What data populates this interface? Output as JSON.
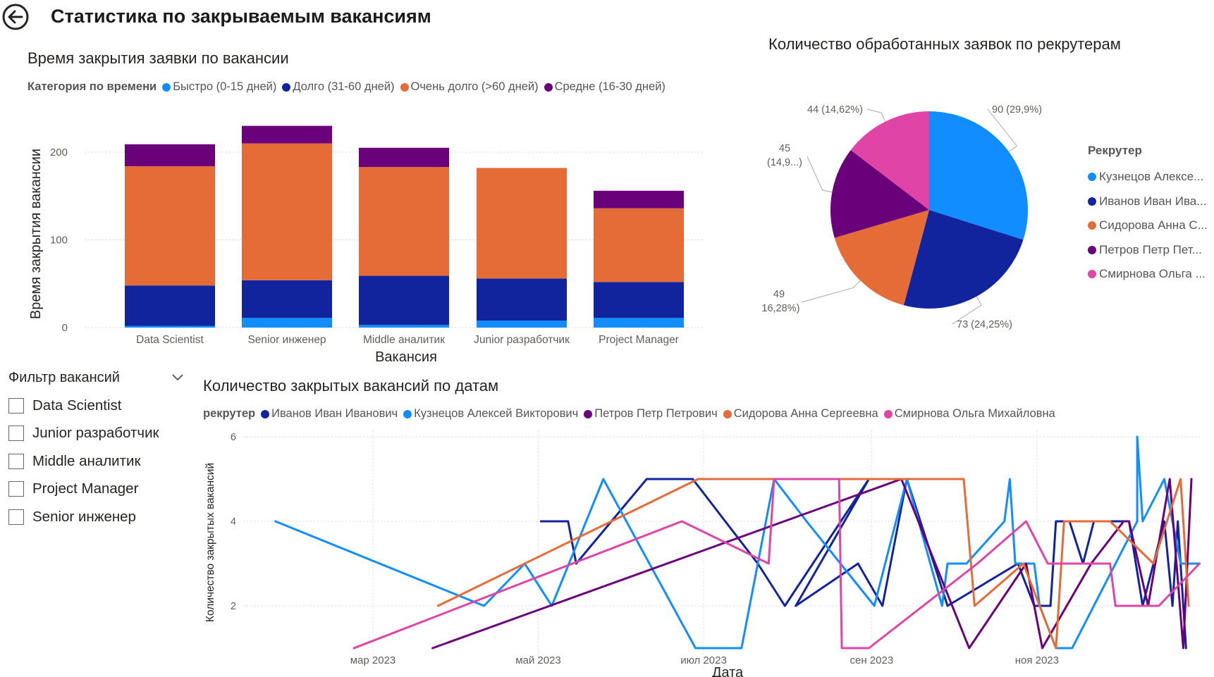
{
  "page": {
    "title": "Статистика по закрываемым вакансиям",
    "back_icon": "back-arrow-icon"
  },
  "bar_chart": {
    "title": "Время закрытия заявки по вакансии",
    "legend_title": "Категория по времени"
  },
  "pie_chart": {
    "title": "Количество обработанных заявок по рекрутерам",
    "legend_title": "Рекрутер",
    "legend_items": [
      {
        "label": "Кузнецов Алексе...",
        "color": "#118DFF"
      },
      {
        "label": "Иванов Иван Ива...",
        "color": "#12239E"
      },
      {
        "label": "Сидорова Анна С...",
        "color": "#E66C37"
      },
      {
        "label": "Петров Петр Пет...",
        "color": "#6B007B"
      },
      {
        "label": "Смирнова Ольга ...",
        "color": "#E044A7"
      }
    ]
  },
  "line_chart": {
    "title": "Количество закрытых вакансий по датам",
    "legend_title": "рекрутер"
  },
  "slicer": {
    "title": "Фильтр вакансий",
    "chevron_icon": "chevron-down-icon",
    "items": [
      "Data Scientist",
      "Junior разработчик",
      "Middle аналитик",
      "Project Manager",
      "Senior инженер"
    ]
  },
  "chart_data": [
    {
      "type": "bar",
      "stacked": true,
      "title": "Время закрытия заявки по вакансии",
      "xlabel": "Вакансия",
      "ylabel": "Время закрытия вакансии",
      "categories": [
        "Data Scientist",
        "Senior инженер",
        "Middle аналитик",
        "Junior разработчик",
        "Project Manager"
      ],
      "ylim": [
        0,
        230
      ],
      "yticks": [
        0,
        100,
        200
      ],
      "legend_position": "top",
      "series": [
        {
          "name": "Быстро (0-15 дней)",
          "color": "#118DFF",
          "values": [
            2,
            11,
            3,
            8,
            11
          ]
        },
        {
          "name": "Долго (31-60 дней)",
          "color": "#12239E",
          "values": [
            46,
            43,
            56,
            48,
            41
          ]
        },
        {
          "name": "Очень долго (>60 дней)",
          "color": "#E66C37",
          "values": [
            136,
            156,
            124,
            126,
            84
          ]
        },
        {
          "name": "Средне (16-30 дней)",
          "color": "#6B007B",
          "values": [
            25,
            20,
            22,
            0,
            20
          ]
        }
      ]
    },
    {
      "type": "pie",
      "title": "Количество обработанных заявок по рекрутерам",
      "legend_position": "right",
      "slices": [
        {
          "name": "Кузнецов Алексе...",
          "value": 90,
          "label": "90 (29,9%)",
          "color": "#118DFF"
        },
        {
          "name": "Иванов Иван Ива...",
          "value": 73,
          "label": "73 (24,25%)",
          "color": "#12239E"
        },
        {
          "name": "Сидорова Анна С...",
          "value": 49,
          "label": "49 (16,28%)",
          "color": "#E66C37"
        },
        {
          "name": "Петров Петр Пет...",
          "value": 45,
          "label": "45 (14,9...)",
          "color": "#6B007B"
        },
        {
          "name": "Смирнова Ольга ...",
          "value": 44,
          "label": "44 (14,62%)",
          "color": "#E044A7"
        }
      ]
    },
    {
      "type": "line",
      "title": "Количество закрытых вакансий по датам",
      "xlabel": "Дата",
      "ylabel": "Количество закрытых вакансий",
      "xlim": [
        "2023-01-24",
        "2023-12-31"
      ],
      "xticks": [
        {
          "date": "2023-03-01",
          "label": "мар 2023"
        },
        {
          "date": "2023-05-01",
          "label": "май 2023"
        },
        {
          "date": "2023-07-01",
          "label": "июл 2023"
        },
        {
          "date": "2023-09-01",
          "label": "сен 2023"
        },
        {
          "date": "2023-11-01",
          "label": "ноя 2023"
        }
      ],
      "ylim": [
        0.5,
        6.2
      ],
      "yticks": [
        2,
        4,
        6
      ],
      "legend_position": "top",
      "series": [
        {
          "name": "Иванов Иван Иванович",
          "color": "#12239E",
          "points": [
            [
              "2023-05-02",
              4
            ],
            [
              "2023-05-12",
              4
            ],
            [
              "2023-05-15",
              3
            ],
            [
              "2023-06-10",
              5
            ],
            [
              "2023-06-27",
              5
            ],
            [
              "2023-07-21",
              3
            ],
            [
              "2023-07-31",
              2
            ],
            [
              "2023-08-31",
              5
            ],
            [
              "2023-08-04",
              2
            ],
            [
              "2023-08-27",
              3
            ],
            [
              "2023-09-05",
              2
            ],
            [
              "2023-09-14",
              5
            ],
            [
              "2023-09-29",
              2
            ],
            [
              "2023-10-25",
              3
            ],
            [
              "2023-10-31",
              2
            ],
            [
              "2023-11-06",
              2
            ],
            [
              "2023-11-08",
              4
            ],
            [
              "2023-11-13",
              4
            ],
            [
              "2023-11-18",
              3
            ],
            [
              "2023-11-22",
              4
            ],
            [
              "2023-12-05",
              4
            ],
            [
              "2023-12-10",
              2
            ],
            [
              "2023-12-18",
              4
            ],
            [
              "2023-12-21",
              2
            ],
            [
              "2023-12-23",
              4
            ],
            [
              "2023-12-26",
              1
            ]
          ]
        },
        {
          "name": "Кузнецов Алексей Викторович",
          "color": "#118DFF",
          "points": [
            [
              "2023-01-24",
              4
            ],
            [
              "2023-04-11",
              2
            ],
            [
              "2023-04-26",
              3
            ],
            [
              "2023-05-06",
              2
            ],
            [
              "2023-05-25",
              5
            ],
            [
              "2023-06-28",
              1
            ],
            [
              "2023-07-15",
              1
            ],
            [
              "2023-07-27",
              5
            ],
            [
              "2023-08-08",
              4
            ],
            [
              "2023-09-02",
              2
            ],
            [
              "2023-09-14",
              5
            ],
            [
              "2023-09-27",
              2
            ],
            [
              "2023-09-29",
              3
            ],
            [
              "2023-10-06",
              3
            ],
            [
              "2023-10-20",
              4
            ],
            [
              "2023-10-22",
              5
            ],
            [
              "2023-10-24",
              3
            ],
            [
              "2023-10-31",
              3
            ],
            [
              "2023-11-02",
              2
            ],
            [
              "2023-11-08",
              1
            ],
            [
              "2023-11-14",
              1
            ],
            [
              "2023-12-08",
              4
            ],
            [
              "2023-12-08",
              6
            ],
            [
              "2023-12-10",
              4
            ],
            [
              "2023-12-18",
              5
            ],
            [
              "2023-12-24",
              3
            ],
            [
              "2023-12-31",
              3
            ]
          ]
        },
        {
          "name": "Петров Петр Петрович",
          "color": "#6B007B",
          "points": [
            [
              "2023-03-23",
              1
            ],
            [
              "2023-09-12",
              5
            ],
            [
              "2023-10-07",
              1
            ],
            [
              "2023-10-28",
              3
            ],
            [
              "2023-11-03",
              1
            ],
            [
              "2023-11-21",
              3
            ],
            [
              "2023-12-03",
              4
            ],
            [
              "2023-12-05",
              4
            ],
            [
              "2023-12-12",
              2
            ],
            [
              "2023-12-20",
              5
            ],
            [
              "2023-12-25",
              1
            ],
            [
              "2023-12-28",
              5
            ]
          ]
        },
        {
          "name": "Сидорова Анна Сергеевна",
          "color": "#E66C37",
          "points": [
            [
              "2023-03-25",
              2
            ],
            [
              "2023-06-29",
              5
            ],
            [
              "2023-10-05",
              5
            ],
            [
              "2023-10-09",
              2
            ],
            [
              "2023-10-27",
              3
            ],
            [
              "2023-11-08",
              1
            ],
            [
              "2023-11-11",
              4
            ],
            [
              "2023-11-28",
              4
            ],
            [
              "2023-12-14",
              3
            ],
            [
              "2023-12-24",
              5
            ],
            [
              "2023-12-27",
              2
            ]
          ]
        },
        {
          "name": "Смирнова Ольга Михайловна",
          "color": "#E044A7",
          "points": [
            [
              "2023-02-22",
              1
            ],
            [
              "2023-06-23",
              4
            ],
            [
              "2023-07-25",
              3
            ],
            [
              "2023-07-27",
              5
            ],
            [
              "2023-08-20",
              5
            ],
            [
              "2023-08-21",
              1
            ],
            [
              "2023-08-31",
              1
            ],
            [
              "2023-10-10",
              3
            ],
            [
              "2023-10-28",
              4
            ],
            [
              "2023-11-05",
              3
            ],
            [
              "2023-11-28",
              3
            ],
            [
              "2023-11-30",
              2
            ],
            [
              "2023-12-16",
              2
            ],
            [
              "2023-12-31",
              3
            ]
          ]
        }
      ]
    }
  ]
}
